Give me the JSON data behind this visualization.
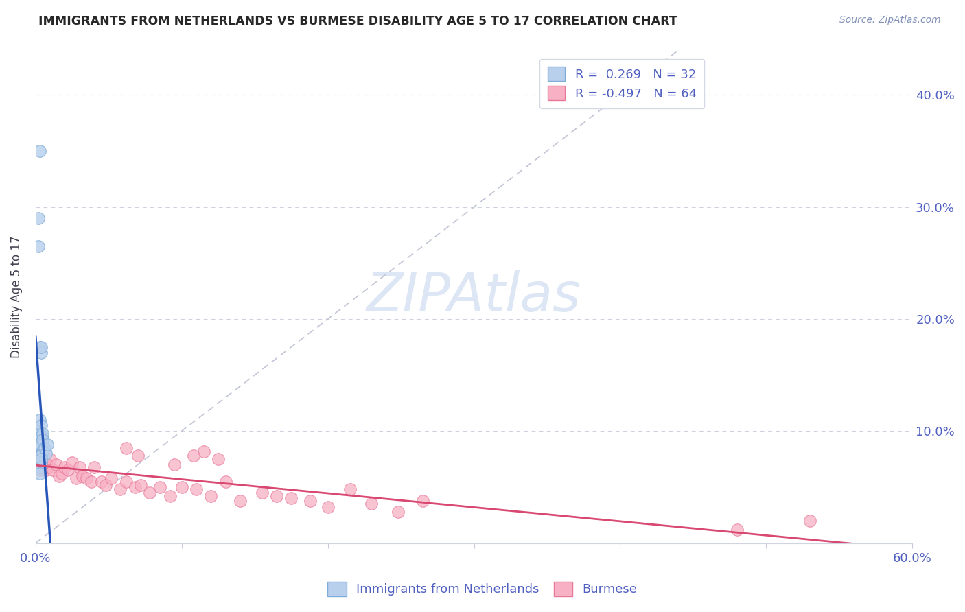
{
  "title": "IMMIGRANTS FROM NETHERLANDS VS BURMESE DISABILITY AGE 5 TO 17 CORRELATION CHART",
  "source": "Source: ZipAtlas.com",
  "ylabel": "Disability Age 5 to 17",
  "xlim": [
    0,
    0.6
  ],
  "ylim": [
    0,
    0.44
  ],
  "yticks": [
    0.0,
    0.1,
    0.2,
    0.3,
    0.4
  ],
  "yticklabels_right": [
    "",
    "10.0%",
    "20.0%",
    "30.0%",
    "40.0%"
  ],
  "xtick_vals": [
    0.0,
    0.1,
    0.2,
    0.3,
    0.4,
    0.5,
    0.6
  ],
  "xticklabels": [
    "0.0%",
    "",
    "",
    "",
    "",
    "",
    "60.0%"
  ],
  "legend_label1": "Immigrants from Netherlands",
  "legend_label2": "Burmese",
  "blue_fill": "#b8d0ec",
  "blue_edge": "#80acd8",
  "pink_fill": "#f8b0c4",
  "pink_edge": "#e87898",
  "blue_line": "#2855b8",
  "pink_line": "#d84870",
  "diag_color": "#c0c4d4",
  "title_color": "#282828",
  "tick_color": "#5060c0",
  "watermark_color": "#dde6f4",
  "blue_x": [
    0.004,
    0.003,
    0.003,
    0.004,
    0.005,
    0.003,
    0.004,
    0.004,
    0.002,
    0.003,
    0.003,
    0.004,
    0.004,
    0.003,
    0.005,
    0.004,
    0.003,
    0.004,
    0.004,
    0.005,
    0.005,
    0.006,
    0.007,
    0.008,
    0.003,
    0.002,
    0.002,
    0.003,
    0.004,
    0.003,
    0.003,
    0.004
  ],
  "blue_y": [
    0.085,
    0.088,
    0.092,
    0.08,
    0.095,
    0.09,
    0.078,
    0.088,
    0.1,
    0.098,
    0.11,
    0.105,
    0.095,
    0.088,
    0.082,
    0.078,
    0.175,
    0.17,
    0.175,
    0.098,
    0.092,
    0.085,
    0.08,
    0.088,
    0.35,
    0.29,
    0.265,
    0.068,
    0.072,
    0.068,
    0.062,
    0.075
  ],
  "pink_x": [
    0.002,
    0.002,
    0.003,
    0.002,
    0.002,
    0.003,
    0.003,
    0.002,
    0.003,
    0.004,
    0.004,
    0.003,
    0.005,
    0.005,
    0.006,
    0.007,
    0.008,
    0.009,
    0.01,
    0.012,
    0.014,
    0.016,
    0.018,
    0.02,
    0.022,
    0.025,
    0.028,
    0.03,
    0.032,
    0.035,
    0.038,
    0.04,
    0.045,
    0.048,
    0.052,
    0.058,
    0.062,
    0.068,
    0.072,
    0.078,
    0.085,
    0.092,
    0.1,
    0.11,
    0.12,
    0.13,
    0.14,
    0.155,
    0.165,
    0.175,
    0.188,
    0.2,
    0.215,
    0.23,
    0.248,
    0.265,
    0.115,
    0.125,
    0.095,
    0.108,
    0.062,
    0.07,
    0.53,
    0.48
  ],
  "pink_y": [
    0.08,
    0.085,
    0.075,
    0.082,
    0.076,
    0.078,
    0.07,
    0.072,
    0.068,
    0.078,
    0.072,
    0.065,
    0.075,
    0.068,
    0.072,
    0.065,
    0.07,
    0.068,
    0.075,
    0.065,
    0.07,
    0.06,
    0.062,
    0.068,
    0.065,
    0.072,
    0.058,
    0.068,
    0.06,
    0.058,
    0.055,
    0.068,
    0.055,
    0.052,
    0.058,
    0.048,
    0.055,
    0.05,
    0.052,
    0.045,
    0.05,
    0.042,
    0.05,
    0.048,
    0.042,
    0.055,
    0.038,
    0.045,
    0.042,
    0.04,
    0.038,
    0.032,
    0.048,
    0.035,
    0.028,
    0.038,
    0.082,
    0.075,
    0.07,
    0.078,
    0.085,
    0.078,
    0.02,
    0.012
  ]
}
